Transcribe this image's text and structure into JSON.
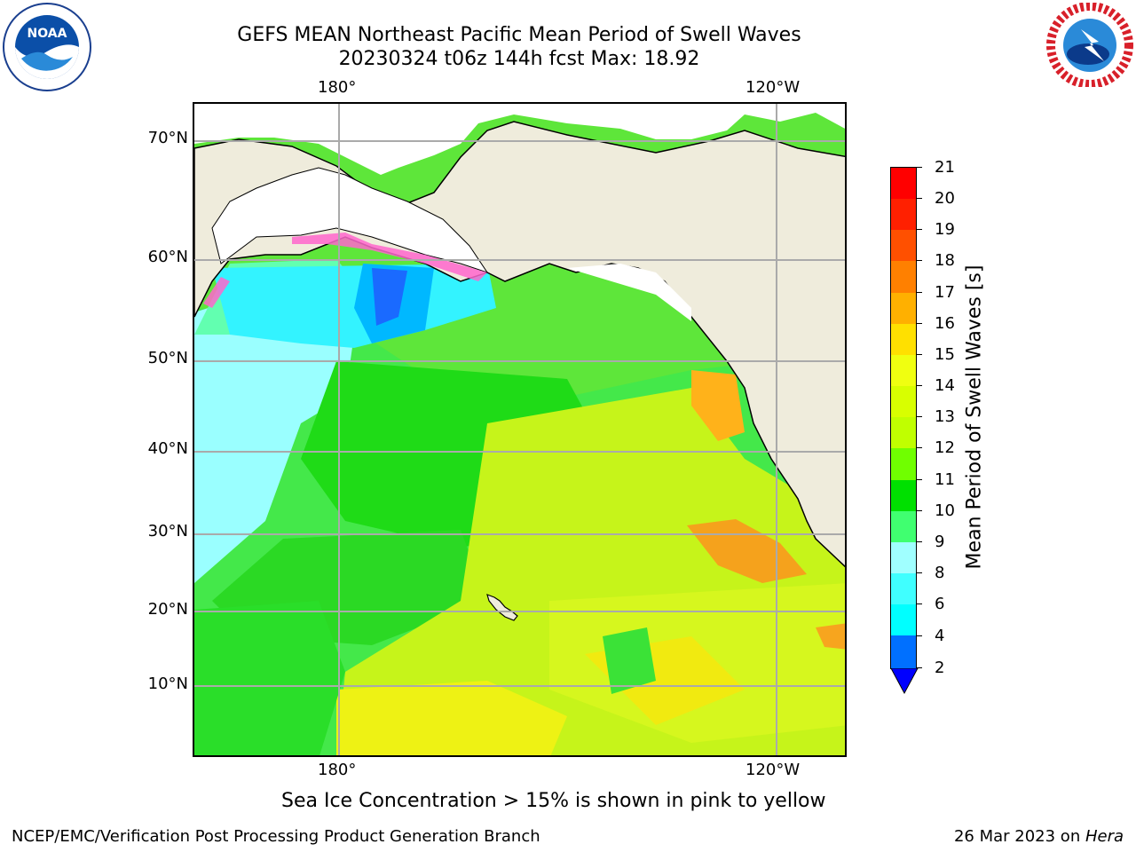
{
  "title_line1": "GEFS MEAN Northeast Pacific Mean Period of Swell Waves",
  "title_line2": "20230324 t06z 144h fcst   Max: 18.92",
  "map": {
    "top_lon_labels": [
      "180°",
      "120°W"
    ],
    "bottom_lon_labels": [
      "180°",
      "120°W"
    ],
    "lat_labels": [
      "70°N",
      "60°N",
      "50°N",
      "40°N",
      "30°N",
      "20°N",
      "10°N"
    ]
  },
  "colorbar": {
    "label": "Mean Period of Swell Waves [s]",
    "ticks": [
      "21",
      "20",
      "19",
      "18",
      "17",
      "16",
      "15",
      "14",
      "13",
      "12",
      "11",
      "10",
      "9",
      "8",
      "6",
      "4",
      "2"
    ],
    "colors": [
      "#ff0000",
      "#ff2000",
      "#ff5000",
      "#ff8000",
      "#ffb000",
      "#ffe000",
      "#f0ff10",
      "#d8ff00",
      "#c0ff00",
      "#70ff00",
      "#00e000",
      "#40ff70",
      "#a0ffff",
      "#40ffff",
      "#00ffff",
      "#00e0ff",
      "#0070ff",
      "#0000ff"
    ],
    "extend_color": "#0000ff"
  },
  "note": "Sea Ice Concentration > 15% is shown in pink to yellow",
  "footer_left": "NCEP/EMC/Verification Post Processing Product Generation Branch",
  "footer_right_date": "26 Mar 2023 on ",
  "footer_right_host": "Hera",
  "logos": [
    "noaa-logo",
    "nws-logo"
  ]
}
